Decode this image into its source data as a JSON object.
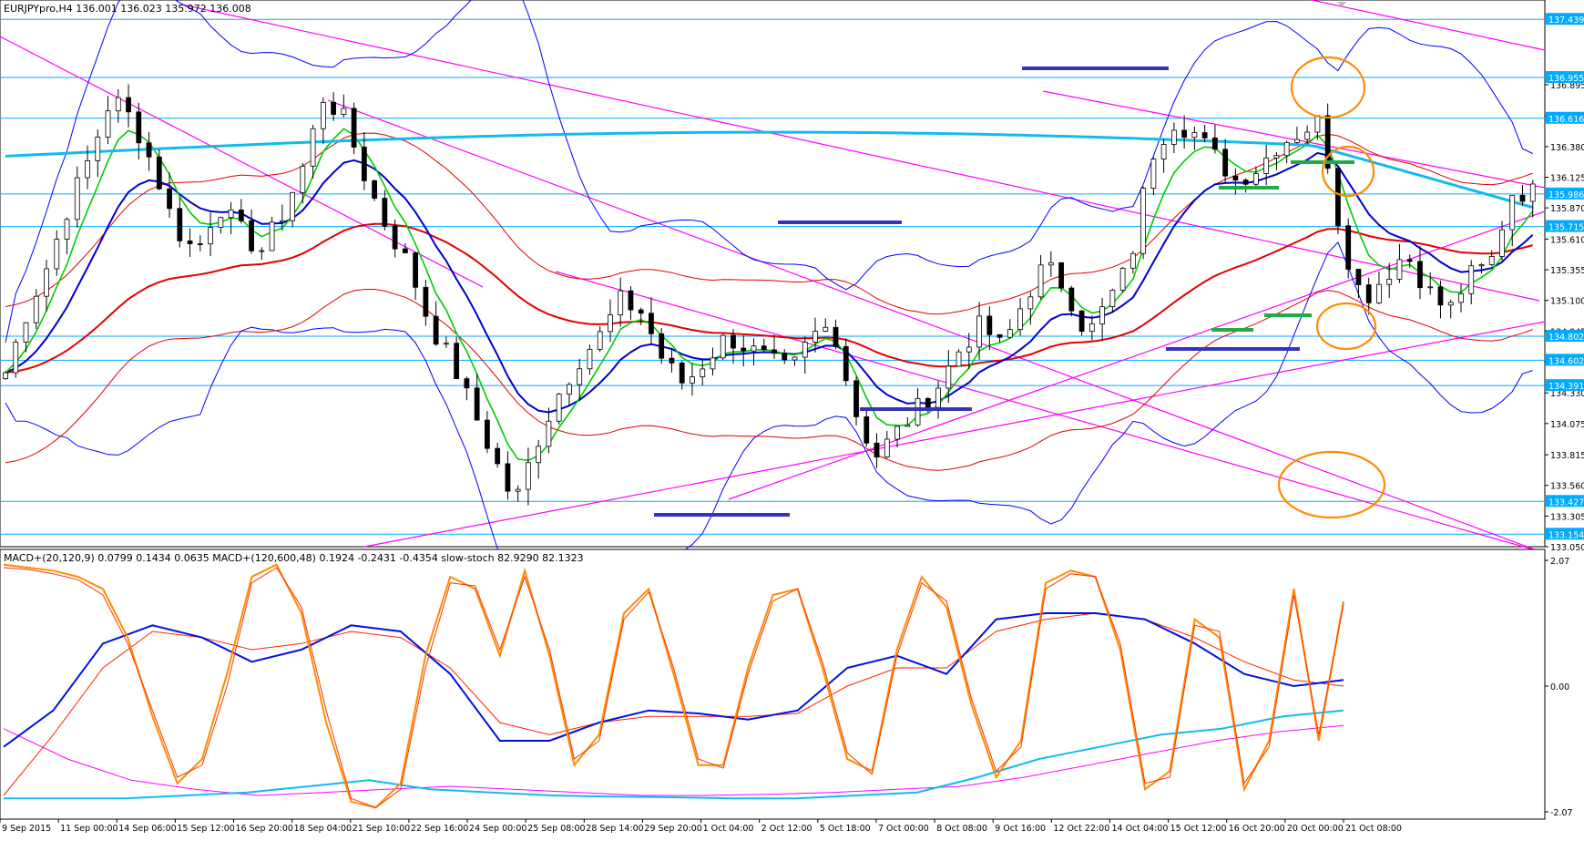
{
  "symbol_header": "EURJPYpro,H4  136.001 136.023 135.972 136.008",
  "indicator_header": "MACD+(20,120,9) 0.0799 0.1434 0.0635   MACD+(120,600,48) 0.1924 -0.2431 -0.4354   slow-stoch 82.9290 82.1323",
  "colors": {
    "bull": "#ffffff",
    "bear": "#000000",
    "level_line": "#00aaff",
    "level_tag": "#00aaff",
    "trend": "#ff00ff",
    "bb": "#0000ff",
    "ema_red": "#e00000",
    "ema_green": "#00cc00",
    "ema_blue": "#0000cc",
    "ema_cyan": "#11bbee",
    "zone": "#3333bb",
    "mark_green": "#22aa44",
    "circle": "#ff8c00"
  },
  "chart_data": [
    {
      "type": "candlestick",
      "title": "EURJPYpro,H4",
      "ylim": [
        133.05,
        137.6
      ],
      "yticks": [
        "136.895",
        "136.635",
        "136.380",
        "136.125",
        "135.870",
        "135.610",
        "135.355",
        "135.100",
        "134.845",
        "134.590",
        "134.330",
        "134.075",
        "133.815",
        "133.560",
        "133.305",
        "133.050"
      ],
      "level_tags": [
        "137.439",
        "136.955",
        "136.616",
        "135.986",
        "135.715",
        "134.802",
        "134.602",
        "134.391",
        "133.427",
        "133.154"
      ],
      "x_labels": [
        "9 Sep 2015",
        "11 Sep 00:00",
        "14 Sep 06:00",
        "15 Sep 12:00",
        "16 Sep 20:00",
        "18 Sep 04:00",
        "21 Sep 10:00",
        "22 Sep 16:00",
        "24 Sep 00:00",
        "25 Sep 08:00",
        "28 Sep 14:00",
        "29 Sep 20:00",
        "1 Oct 04:00",
        "2 Oct 12:00",
        "5 Oct 18:00",
        "7 Oct 00:00",
        "8 Oct 08:00",
        "9 Oct 16:00",
        "12 Oct 22:00",
        "14 Oct 04:00",
        "15 Oct 12:00",
        "16 Oct 20:00",
        "20 Oct 00:00",
        "21 Oct 08:00"
      ],
      "close_path": [
        134.5,
        135.0,
        135.4,
        135.9,
        136.3,
        136.8,
        136.6,
        136.2,
        135.7,
        135.5,
        135.9,
        135.7,
        135.5,
        135.8,
        136.2,
        136.8,
        136.6,
        136.1,
        135.7,
        135.4,
        134.9,
        134.6,
        134.2,
        133.8,
        133.4,
        133.9,
        134.3,
        134.6,
        134.8,
        135.1,
        135.0,
        134.6,
        134.4,
        134.6,
        134.8,
        134.7,
        134.6,
        134.5,
        134.8,
        134.9,
        134.2,
        133.8,
        134.0,
        134.2,
        134.4,
        134.7,
        134.9,
        134.7,
        135.1,
        135.4,
        135.2,
        134.8,
        135.1,
        135.4,
        136.3,
        136.6,
        136.5,
        136.3,
        136.1,
        136.2,
        136.4,
        136.5,
        136.6,
        135.6,
        135.1,
        135.3,
        135.5,
        135.2,
        135.0,
        135.3,
        135.4,
        136.0,
        136.0
      ],
      "indicator_lines": [
        "bollinger-bands",
        "ema-red",
        "ema-blue",
        "ema-green",
        "ema-cyan"
      ],
      "horizontal_levels": [
        137.439,
        136.955,
        136.616,
        135.986,
        135.715,
        134.802,
        134.602,
        134.391,
        133.427,
        133.154
      ],
      "highlight_circles": 4
    },
    {
      "type": "line",
      "title": "MACD+ / slow-stoch",
      "ylim": [
        -2.07,
        2.07
      ],
      "yticks": [
        "2.07",
        "0.00",
        "-2.07"
      ],
      "series": [
        {
          "name": "slow-stoch %K",
          "values": [
            2.0,
            1.95,
            1.9,
            1.8,
            1.6,
            0.8,
            -0.5,
            -1.6,
            -1.2,
            0.2,
            1.8,
            2.0,
            1.2,
            -0.6,
            -1.9,
            -2.0,
            -1.6,
            0.5,
            1.8,
            1.6,
            0.5,
            1.9,
            0.5,
            -1.3,
            -0.8,
            1.2,
            1.6,
            0.2,
            -1.3,
            -1.3,
            0.3,
            1.5,
            1.6,
            0.3,
            -1.2,
            -1.4,
            0.6,
            1.8,
            1.3,
            -0.3,
            -1.5,
            -0.9,
            1.7,
            1.9,
            1.8,
            0.6,
            -1.7,
            -1.4,
            1.1,
            0.8,
            -1.7,
            -0.9,
            1.6,
            -0.9,
            1.4
          ]
        },
        {
          "name": "slow-stoch %D",
          "values": [
            1.95,
            1.92,
            1.85,
            1.75,
            1.5,
            0.7,
            -0.4,
            -1.5,
            -1.3,
            0.0,
            1.7,
            1.95,
            1.3,
            -0.4,
            -1.85,
            -2.0,
            -1.7,
            0.3,
            1.7,
            1.65,
            0.6,
            1.8,
            0.6,
            -1.2,
            -0.9,
            1.1,
            1.55,
            0.3,
            -1.2,
            -1.35,
            0.2,
            1.4,
            1.6,
            0.4,
            -1.1,
            -1.45,
            0.5,
            1.7,
            1.4,
            -0.2,
            -1.4,
            -1.0,
            1.6,
            1.85,
            1.8,
            0.7,
            -1.6,
            -1.5,
            1.0,
            0.9,
            -1.6,
            -1.0,
            1.5,
            -0.8,
            1.35
          ]
        }
      ]
    }
  ]
}
